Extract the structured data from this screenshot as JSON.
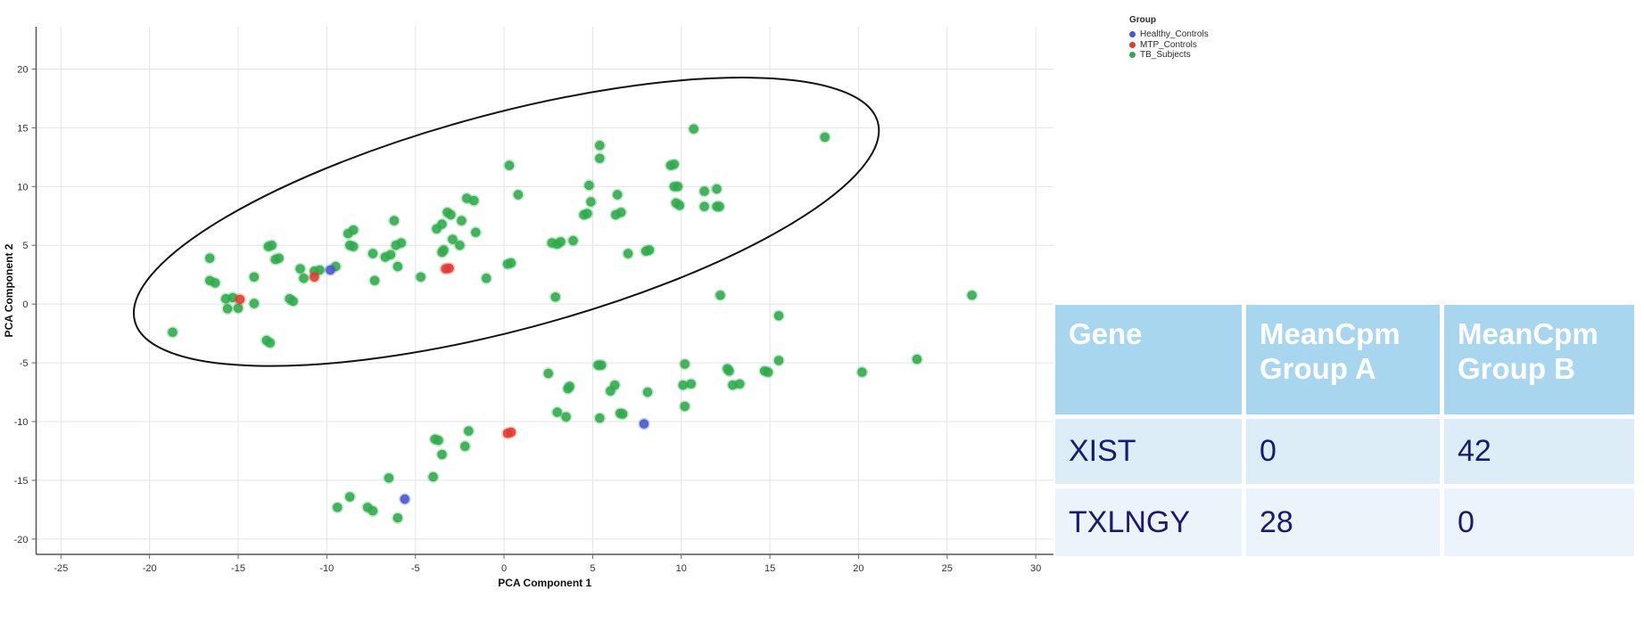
{
  "chart_data": {
    "type": "scatter",
    "title": "",
    "xlabel": "PCA Component 1",
    "ylabel": "PCA Component 2",
    "xlim": [
      -26.4,
      31.0
    ],
    "ylim": [
      -21.3,
      23.6
    ],
    "xticks": [
      -25,
      -20,
      -15,
      -10,
      -5,
      0,
      5,
      10,
      15,
      20,
      25,
      30
    ],
    "yticks": [
      20,
      15,
      10,
      5,
      0,
      -5,
      -10,
      -15,
      -20
    ],
    "grid": true,
    "legend_position": "top-right-outside",
    "series": [
      {
        "name": "Healthy_Controls",
        "color": "#4558D0",
        "points": [
          [
            -9.8,
            2.9
          ],
          [
            7.9,
            -10.2
          ],
          [
            -5.6,
            -16.6
          ]
        ]
      },
      {
        "name": "MTP_Controls",
        "color": "#E43A2E",
        "points": [
          [
            -14.9,
            0.4
          ],
          [
            -10.7,
            2.3
          ],
          [
            -3.3,
            3.0
          ],
          [
            -3.1,
            3.05
          ],
          [
            0.2,
            -11.0
          ],
          [
            0.4,
            -10.9
          ]
        ]
      },
      {
        "name": "TB_Subjects",
        "color": "#2EAC4B",
        "points": [
          [
            -18.7,
            -2.4
          ],
          [
            -16.6,
            3.9
          ],
          [
            -16.6,
            2.0
          ],
          [
            -16.3,
            1.8
          ],
          [
            -15.7,
            0.45
          ],
          [
            -15.3,
            0.55
          ],
          [
            -15.6,
            -0.4
          ],
          [
            -15.0,
            -0.35
          ],
          [
            -14.1,
            2.3
          ],
          [
            -14.1,
            0.05
          ],
          [
            -13.4,
            -3.1
          ],
          [
            -13.2,
            -3.3
          ],
          [
            -13.3,
            4.9
          ],
          [
            -13.1,
            5.0
          ],
          [
            -12.9,
            3.8
          ],
          [
            -12.7,
            3.9
          ],
          [
            -12.1,
            0.45
          ],
          [
            -11.9,
            0.25
          ],
          [
            -11.5,
            3.0
          ],
          [
            -11.3,
            2.2
          ],
          [
            -10.7,
            2.8
          ],
          [
            -10.4,
            2.9
          ],
          [
            -9.5,
            3.2
          ],
          [
            -8.8,
            6.0
          ],
          [
            -8.5,
            6.3
          ],
          [
            -8.7,
            5.0
          ],
          [
            -8.5,
            4.9
          ],
          [
            -7.4,
            4.3
          ],
          [
            -7.3,
            2.0
          ],
          [
            -6.7,
            4.0
          ],
          [
            -6.4,
            4.2
          ],
          [
            -6.2,
            7.1
          ],
          [
            -6.1,
            5.0
          ],
          [
            -5.8,
            5.2
          ],
          [
            -6.0,
            3.2
          ],
          [
            -4.7,
            2.3
          ],
          [
            -3.8,
            6.4
          ],
          [
            -3.5,
            6.8
          ],
          [
            -3.2,
            7.8
          ],
          [
            -3.0,
            7.6
          ],
          [
            -3.5,
            4.4
          ],
          [
            -3.4,
            4.6
          ],
          [
            -2.9,
            5.5
          ],
          [
            -2.5,
            5.0
          ],
          [
            -2.4,
            7.1
          ],
          [
            -2.1,
            9.0
          ],
          [
            -1.7,
            8.8
          ],
          [
            -1.6,
            6.1
          ],
          [
            -1.0,
            2.2
          ],
          [
            0.2,
            3.4
          ],
          [
            0.4,
            3.5
          ],
          [
            0.3,
            11.8
          ],
          [
            0.8,
            9.3
          ],
          [
            2.7,
            5.2
          ],
          [
            3.0,
            5.1
          ],
          [
            3.2,
            5.3
          ],
          [
            3.9,
            5.4
          ],
          [
            2.9,
            0.6
          ],
          [
            4.5,
            7.6
          ],
          [
            4.7,
            7.7
          ],
          [
            4.8,
            10.1
          ],
          [
            4.9,
            8.7
          ],
          [
            5.4,
            13.5
          ],
          [
            5.4,
            12.4
          ],
          [
            6.3,
            7.6
          ],
          [
            6.6,
            7.8
          ],
          [
            6.4,
            9.3
          ],
          [
            7.0,
            4.3
          ],
          [
            8.0,
            4.5
          ],
          [
            8.2,
            4.6
          ],
          [
            9.4,
            11.8
          ],
          [
            9.6,
            11.9
          ],
          [
            9.6,
            10.0
          ],
          [
            9.8,
            10.0
          ],
          [
            9.7,
            8.6
          ],
          [
            9.9,
            8.4
          ],
          [
            10.7,
            14.9
          ],
          [
            11.3,
            9.6
          ],
          [
            12.0,
            9.8
          ],
          [
            11.3,
            8.3
          ],
          [
            12.0,
            8.3
          ],
          [
            12.15,
            8.3
          ],
          [
            12.2,
            0.75
          ],
          [
            15.5,
            -1.0
          ],
          [
            18.1,
            14.2
          ],
          [
            26.4,
            0.75
          ],
          [
            15.5,
            -4.8
          ],
          [
            23.3,
            -4.7
          ],
          [
            20.2,
            -5.8
          ],
          [
            5.3,
            -5.2
          ],
          [
            5.5,
            -5.2
          ],
          [
            10.2,
            -5.1
          ],
          [
            2.5,
            -5.9
          ],
          [
            12.6,
            -5.5
          ],
          [
            12.7,
            -5.7
          ],
          [
            14.7,
            -5.7
          ],
          [
            14.9,
            -5.8
          ],
          [
            3.6,
            -7.2
          ],
          [
            3.7,
            -7.0
          ],
          [
            6.0,
            -7.4
          ],
          [
            6.25,
            -6.9
          ],
          [
            8.1,
            -7.5
          ],
          [
            10.1,
            -6.9
          ],
          [
            10.55,
            -6.8
          ],
          [
            12.9,
            -6.9
          ],
          [
            13.3,
            -6.8
          ],
          [
            10.2,
            -8.7
          ],
          [
            3.0,
            -9.2
          ],
          [
            3.5,
            -9.6
          ],
          [
            5.4,
            -9.7
          ],
          [
            6.55,
            -9.3
          ],
          [
            6.7,
            -9.35
          ],
          [
            -2.0,
            -10.8
          ],
          [
            -3.9,
            -11.5
          ],
          [
            -3.7,
            -11.6
          ],
          [
            -2.2,
            -12.1
          ],
          [
            -3.5,
            -12.8
          ],
          [
            -4.0,
            -14.7
          ],
          [
            -6.5,
            -14.8
          ],
          [
            -8.7,
            -16.4
          ],
          [
            -9.4,
            -17.3
          ],
          [
            -7.7,
            -17.3
          ],
          [
            -7.4,
            -17.6
          ],
          [
            -6.0,
            -18.2
          ]
        ]
      }
    ],
    "annotations": {
      "ellipse": {
        "center": [
          0.13,
          7.0
        ],
        "semi_major_x_units": 21.7,
        "semi_minor_y_units": 9.2,
        "angle_deg": -15,
        "stroke": "#111111"
      }
    }
  },
  "legend": {
    "title": "Group"
  },
  "table": {
    "headers": [
      "Gene",
      "MeanCpm Group A",
      "MeanCpm Group B"
    ],
    "rows": [
      [
        "XIST",
        "0",
        "42"
      ],
      [
        "TXLNGY",
        "28",
        "0"
      ]
    ],
    "header_bg": "#A9D6EF",
    "row_bgs": [
      "#DCEDF8",
      "#EBF4FB"
    ],
    "header_text_color": "#FFFFFF",
    "text_color": "#1A1A70"
  }
}
